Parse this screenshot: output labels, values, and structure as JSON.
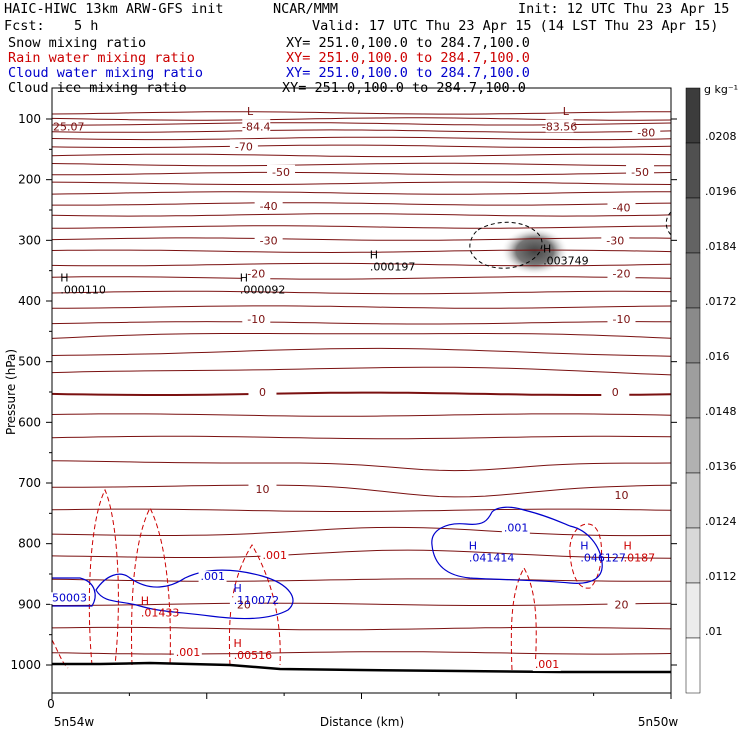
{
  "header": {
    "model": "HAIC-HIWC 13km ARW-GFS init",
    "org": "NCAR/MMM",
    "init": "Init: 12 UTC Thu 23 Apr 15",
    "fcst_label": "Fcst:",
    "fcst_value": "5 h",
    "valid": "Valid: 17 UTC Thu 23 Apr 15 (14 LST Thu 23 Apr 15)"
  },
  "fields": [
    {
      "name": "Snow mixing ratio",
      "xy": "XY= 251.0,100.0 to 284.7,100.0",
      "color": "#000000"
    },
    {
      "name": "Rain water mixing ratio",
      "xy": "XY= 251.0,100.0 to 284.7,100.0",
      "color": "#cc0000"
    },
    {
      "name": "Cloud water mixing ratio",
      "xy": "XY= 251.0,100.0 to 284.7,100.0",
      "color": "#0000cc"
    },
    {
      "name": "Cloud ice mixing ratio",
      "xy": "XY= 251.0,100.0 to 284.7,100.0",
      "color": "#000000"
    }
  ],
  "chart_data": {
    "type": "contour",
    "ylabel": "Pressure (hPa)",
    "xlabel": "Distance (km)",
    "y_ticks": [
      100,
      200,
      300,
      400,
      500,
      600,
      700,
      800,
      900,
      1000
    ],
    "ylim": [
      1050,
      50
    ],
    "x_tick_label": "0",
    "x_left_label": "5n54w",
    "x_right_label": "5n50w",
    "colorbar": {
      "units": "g kg⁻¹",
      "ticks": [
        ".0208",
        ".0196",
        ".0184",
        ".0172",
        ".016",
        ".0148",
        ".0136",
        ".0124",
        ".0112",
        ".01"
      ],
      "min": 0.01,
      "max": 0.0208
    },
    "temperature_contours": {
      "color": "#7a1010",
      "labels": [
        {
          "text": "-84.4",
          "p": 112,
          "x": 0.33
        },
        {
          "text": "-83.56",
          "p": 112,
          "x": 0.82
        },
        {
          "text": "-80",
          "p": 122,
          "x": 0.96
        },
        {
          "text": "-70",
          "p": 145,
          "x": 0.31
        },
        {
          "text": "-50",
          "p": 187,
          "x": 0.37
        },
        {
          "text": "-50",
          "p": 187,
          "x": 0.95
        },
        {
          "text": "-40",
          "p": 243,
          "x": 0.35
        },
        {
          "text": "-40",
          "p": 246,
          "x": 0.92
        },
        {
          "text": "-30",
          "p": 300,
          "x": 0.35
        },
        {
          "text": "-30",
          "p": 300,
          "x": 0.91
        },
        {
          "text": "-20",
          "p": 355,
          "x": 0.33
        },
        {
          "text": "-20",
          "p": 355,
          "x": 0.92
        },
        {
          "text": "-10",
          "p": 430,
          "x": 0.33
        },
        {
          "text": "-10",
          "p": 430,
          "x": 0.92
        },
        {
          "text": "0",
          "p": 550,
          "x": 0.34
        },
        {
          "text": "0",
          "p": 550,
          "x": 0.91
        },
        {
          "text": "10",
          "p": 710,
          "x": 0.34
        },
        {
          "text": "10",
          "p": 720,
          "x": 0.92
        },
        {
          "text": "20",
          "p": 900,
          "x": 0.31
        },
        {
          "text": "20",
          "p": 900,
          "x": 0.92
        }
      ],
      "edge_labels": [
        {
          "text": "25.07",
          "p": 112,
          "x": 0.0
        }
      ]
    },
    "extrema": [
      {
        "mark": "L",
        "value": "",
        "p": 93,
        "x": 0.32,
        "color": "#7a1010"
      },
      {
        "mark": "L",
        "value": "",
        "p": 93,
        "x": 0.83,
        "color": "#7a1010"
      },
      {
        "mark": "H",
        "value": ".003749",
        "p": 320,
        "x": 0.8,
        "color": "#000000"
      },
      {
        "mark": "H",
        "value": ".000197",
        "p": 330,
        "x": 0.52,
        "color": "#000000"
      },
      {
        "mark": "H",
        "value": ".000110",
        "p": 368,
        "x": 0.02,
        "color": "#000000"
      },
      {
        "mark": "H",
        "value": ".000092",
        "p": 368,
        "x": 0.31,
        "color": "#000000"
      },
      {
        "mark": "H",
        "value": ".041414",
        "p": 810,
        "x": 0.68,
        "color": "#0000cc"
      },
      {
        "mark": "H",
        "value": ".046127",
        "p": 810,
        "x": 0.86,
        "color": "#0000cc"
      },
      {
        "mark": "H",
        "value": ".0187",
        "p": 810,
        "x": 0.93,
        "color": "#cc0000"
      },
      {
        "mark": "H",
        "value": ".110072",
        "p": 880,
        "x": 0.3,
        "color": "#0000cc"
      },
      {
        "mark": "H",
        "value": ".01433",
        "p": 900,
        "x": 0.15,
        "color": "#cc0000"
      },
      {
        "mark": "H",
        "value": ".00516",
        "p": 970,
        "x": 0.3,
        "color": "#cc0000"
      }
    ],
    "contour_labels": [
      {
        "text": ".001",
        "p": 780,
        "x": 0.73,
        "color": "#0000cc"
      },
      {
        "text": ".001",
        "p": 860,
        "x": 0.24,
        "color": "#0000cc"
      },
      {
        "text": "50003",
        "p": 895,
        "x": 0.0,
        "color": "#0000cc"
      },
      {
        "text": ".001",
        "p": 825,
        "x": 0.34,
        "color": "#cc0000"
      },
      {
        "text": ".001",
        "p": 985,
        "x": 0.2,
        "color": "#cc0000"
      },
      {
        "text": ".001",
        "p": 1005,
        "x": 0.78,
        "color": "#cc0000"
      }
    ]
  }
}
